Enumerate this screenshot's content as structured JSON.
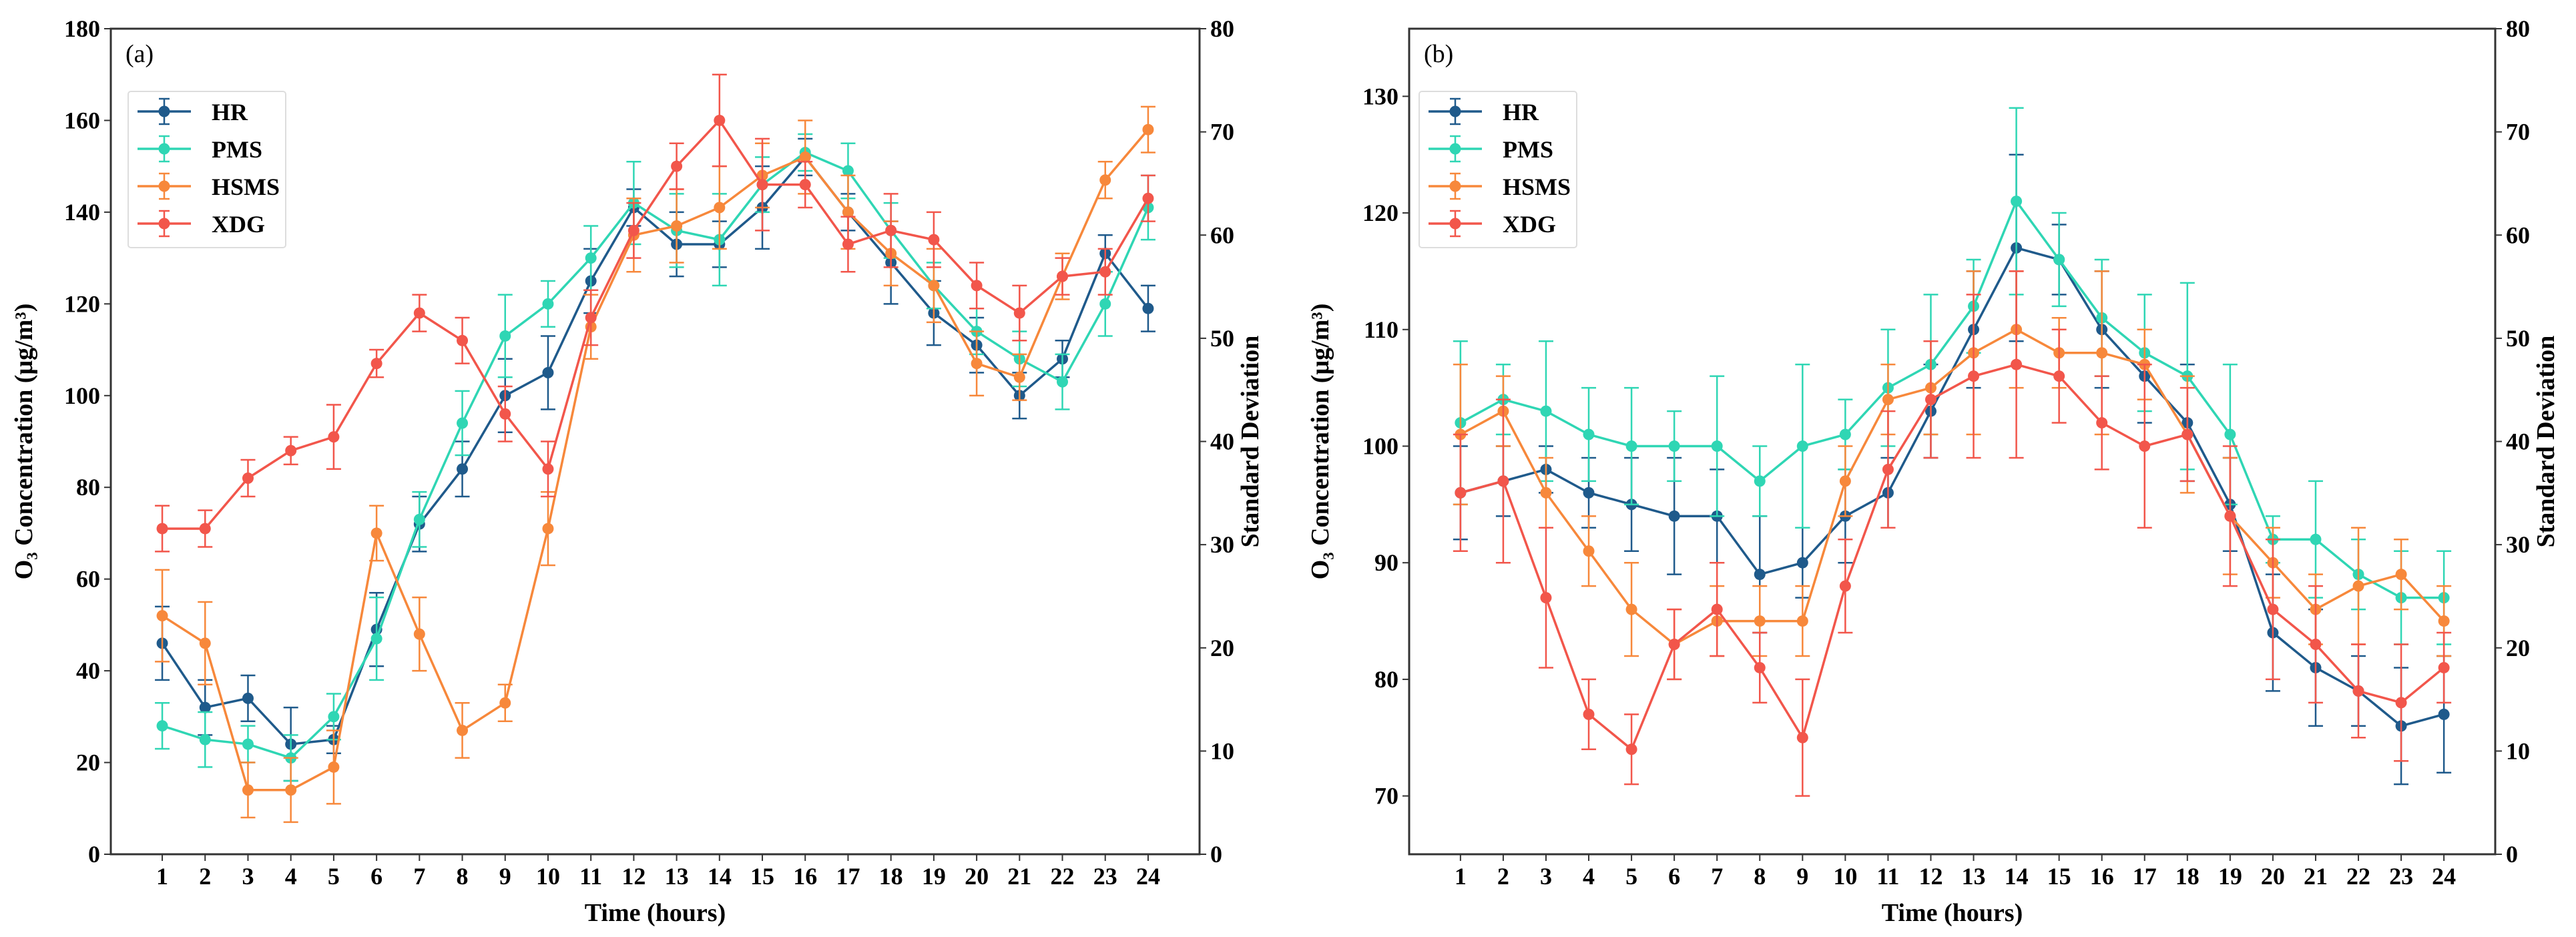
{
  "chart_data": [
    {
      "type": "line",
      "panel_label": "(a)",
      "xlabel": "Time (hours)",
      "ylabel": "O₃ Concentration (μg/m³)",
      "ylabel_right": "Standard Deviation",
      "x": [
        1,
        2,
        3,
        4,
        5,
        6,
        7,
        8,
        9,
        10,
        11,
        12,
        13,
        14,
        15,
        16,
        17,
        18,
        19,
        20,
        21,
        22,
        23,
        24
      ],
      "xlim": [
        -0.2,
        25.2
      ],
      "ylim": [
        0,
        180
      ],
      "yticks": [
        0,
        20,
        40,
        60,
        80,
        100,
        120,
        140,
        160,
        180
      ],
      "ylim_right": [
        0,
        80
      ],
      "yticks_right": [
        0,
        10,
        20,
        30,
        40,
        50,
        60,
        70,
        80
      ],
      "legend_position": "upper-left",
      "series": [
        {
          "name": "HR",
          "color": "#1f5a8b",
          "values": [
            46,
            32,
            34,
            24,
            25,
            49,
            72,
            84,
            100,
            105,
            125,
            141,
            133,
            133,
            141,
            152,
            140,
            129,
            118,
            111,
            100,
            108,
            131,
            119
          ],
          "errors": [
            8,
            6,
            5,
            8,
            3,
            8,
            6,
            6,
            8,
            8,
            7,
            4,
            7,
            5,
            9,
            4,
            4,
            9,
            7,
            6,
            5,
            4,
            4,
            5
          ]
        },
        {
          "name": "PMS",
          "color": "#2fd6b4",
          "values": [
            28,
            25,
            24,
            21,
            30,
            47,
            73,
            94,
            113,
            120,
            130,
            142,
            136,
            134,
            146,
            153,
            149,
            136,
            124,
            114,
            108,
            103,
            120,
            141
          ],
          "errors": [
            5,
            6,
            4,
            5,
            5,
            9,
            6,
            7,
            9,
            5,
            7,
            9,
            8,
            10,
            6,
            4,
            6,
            6,
            5,
            5,
            6,
            6,
            7,
            7
          ]
        },
        {
          "name": "HSMS",
          "color": "#f7883b",
          "values": [
            52,
            46,
            14,
            14,
            19,
            70,
            48,
            27,
            33,
            71,
            115,
            135,
            137,
            141,
            148,
            152,
            140,
            131,
            124,
            107,
            104,
            126,
            147,
            158
          ],
          "errors": [
            10,
            9,
            6,
            7,
            8,
            6,
            8,
            6,
            4,
            8,
            7,
            8,
            8,
            9,
            7,
            8,
            8,
            7,
            8,
            7,
            5,
            5,
            4,
            5
          ]
        },
        {
          "name": "XDG",
          "color": "#f2564b",
          "values": [
            71,
            71,
            82,
            88,
            91,
            107,
            118,
            112,
            96,
            84,
            117,
            136,
            150,
            160,
            146,
            146,
            133,
            136,
            134,
            124,
            118,
            126,
            127,
            143
          ],
          "errors": [
            5,
            4,
            4,
            3,
            7,
            3,
            4,
            5,
            6,
            6,
            6,
            6,
            5,
            10,
            10,
            5,
            6,
            8,
            6,
            5,
            6,
            4,
            5,
            5
          ]
        }
      ]
    },
    {
      "type": "line",
      "panel_label": "(b)",
      "xlabel": "Time (hours)",
      "ylabel": "O₃ Concentration (μg/m³)",
      "ylabel_right": "Standard Deviation",
      "x": [
        1,
        2,
        3,
        4,
        5,
        6,
        7,
        8,
        9,
        10,
        11,
        12,
        13,
        14,
        15,
        16,
        17,
        18,
        19,
        20,
        21,
        22,
        23,
        24
      ],
      "xlim": [
        -0.2,
        25.2
      ],
      "ylim": [
        65,
        135.8
      ],
      "yticks": [
        70,
        80,
        90,
        100,
        110,
        120,
        130
      ],
      "ylim_right": [
        0,
        80
      ],
      "yticks_right": [
        0,
        10,
        20,
        30,
        40,
        50,
        60,
        70,
        80
      ],
      "legend_position": "upper-left",
      "series": [
        {
          "name": "HR",
          "color": "#1f5a8b",
          "values": [
            96,
            97,
            98,
            96,
            95,
            94,
            94,
            89,
            90,
            94,
            96,
            103,
            110,
            117,
            116,
            110,
            106,
            102,
            95,
            84,
            81,
            79,
            76,
            77
          ],
          "errors": [
            4,
            3,
            2,
            3,
            4,
            5,
            4,
            5,
            3,
            4,
            3,
            4,
            5,
            8,
            3,
            5,
            4,
            5,
            4,
            5,
            5,
            3,
            5,
            5
          ]
        },
        {
          "name": "PMS",
          "color": "#2fd6b4",
          "values": [
            102,
            104,
            103,
            101,
            100,
            100,
            100,
            97,
            100,
            101,
            105,
            107,
            112,
            121,
            116,
            111,
            108,
            106,
            101,
            92,
            92,
            89,
            87,
            87
          ],
          "errors": [
            7,
            3,
            6,
            4,
            5,
            3,
            6,
            3,
            7,
            3,
            5,
            6,
            4,
            8,
            4,
            5,
            5,
            8,
            6,
            2,
            5,
            3,
            4,
            4
          ]
        },
        {
          "name": "HSMS",
          "color": "#f7883b",
          "values": [
            101,
            103,
            96,
            91,
            86,
            83,
            85,
            85,
            85,
            97,
            104,
            105,
            108,
            110,
            108,
            108,
            107,
            101,
            94,
            90,
            86,
            88,
            89,
            85
          ],
          "errors": [
            6,
            3,
            3,
            3,
            4,
            3,
            3,
            3,
            3,
            3,
            3,
            4,
            7,
            5,
            3,
            7,
            3,
            5,
            5,
            3,
            3,
            5,
            3,
            3
          ]
        },
        {
          "name": "XDG",
          "color": "#f2564b",
          "values": [
            96,
            97,
            87,
            77,
            74,
            83,
            86,
            81,
            75,
            88,
            98,
            104,
            106,
            107,
            106,
            102,
            100,
            101,
            94,
            86,
            83,
            79,
            78,
            81
          ],
          "errors": [
            5,
            7,
            6,
            3,
            3,
            3,
            4,
            3,
            5,
            4,
            5,
            5,
            7,
            8,
            4,
            4,
            7,
            4,
            6,
            6,
            5,
            4,
            5,
            3
          ]
        }
      ]
    }
  ]
}
